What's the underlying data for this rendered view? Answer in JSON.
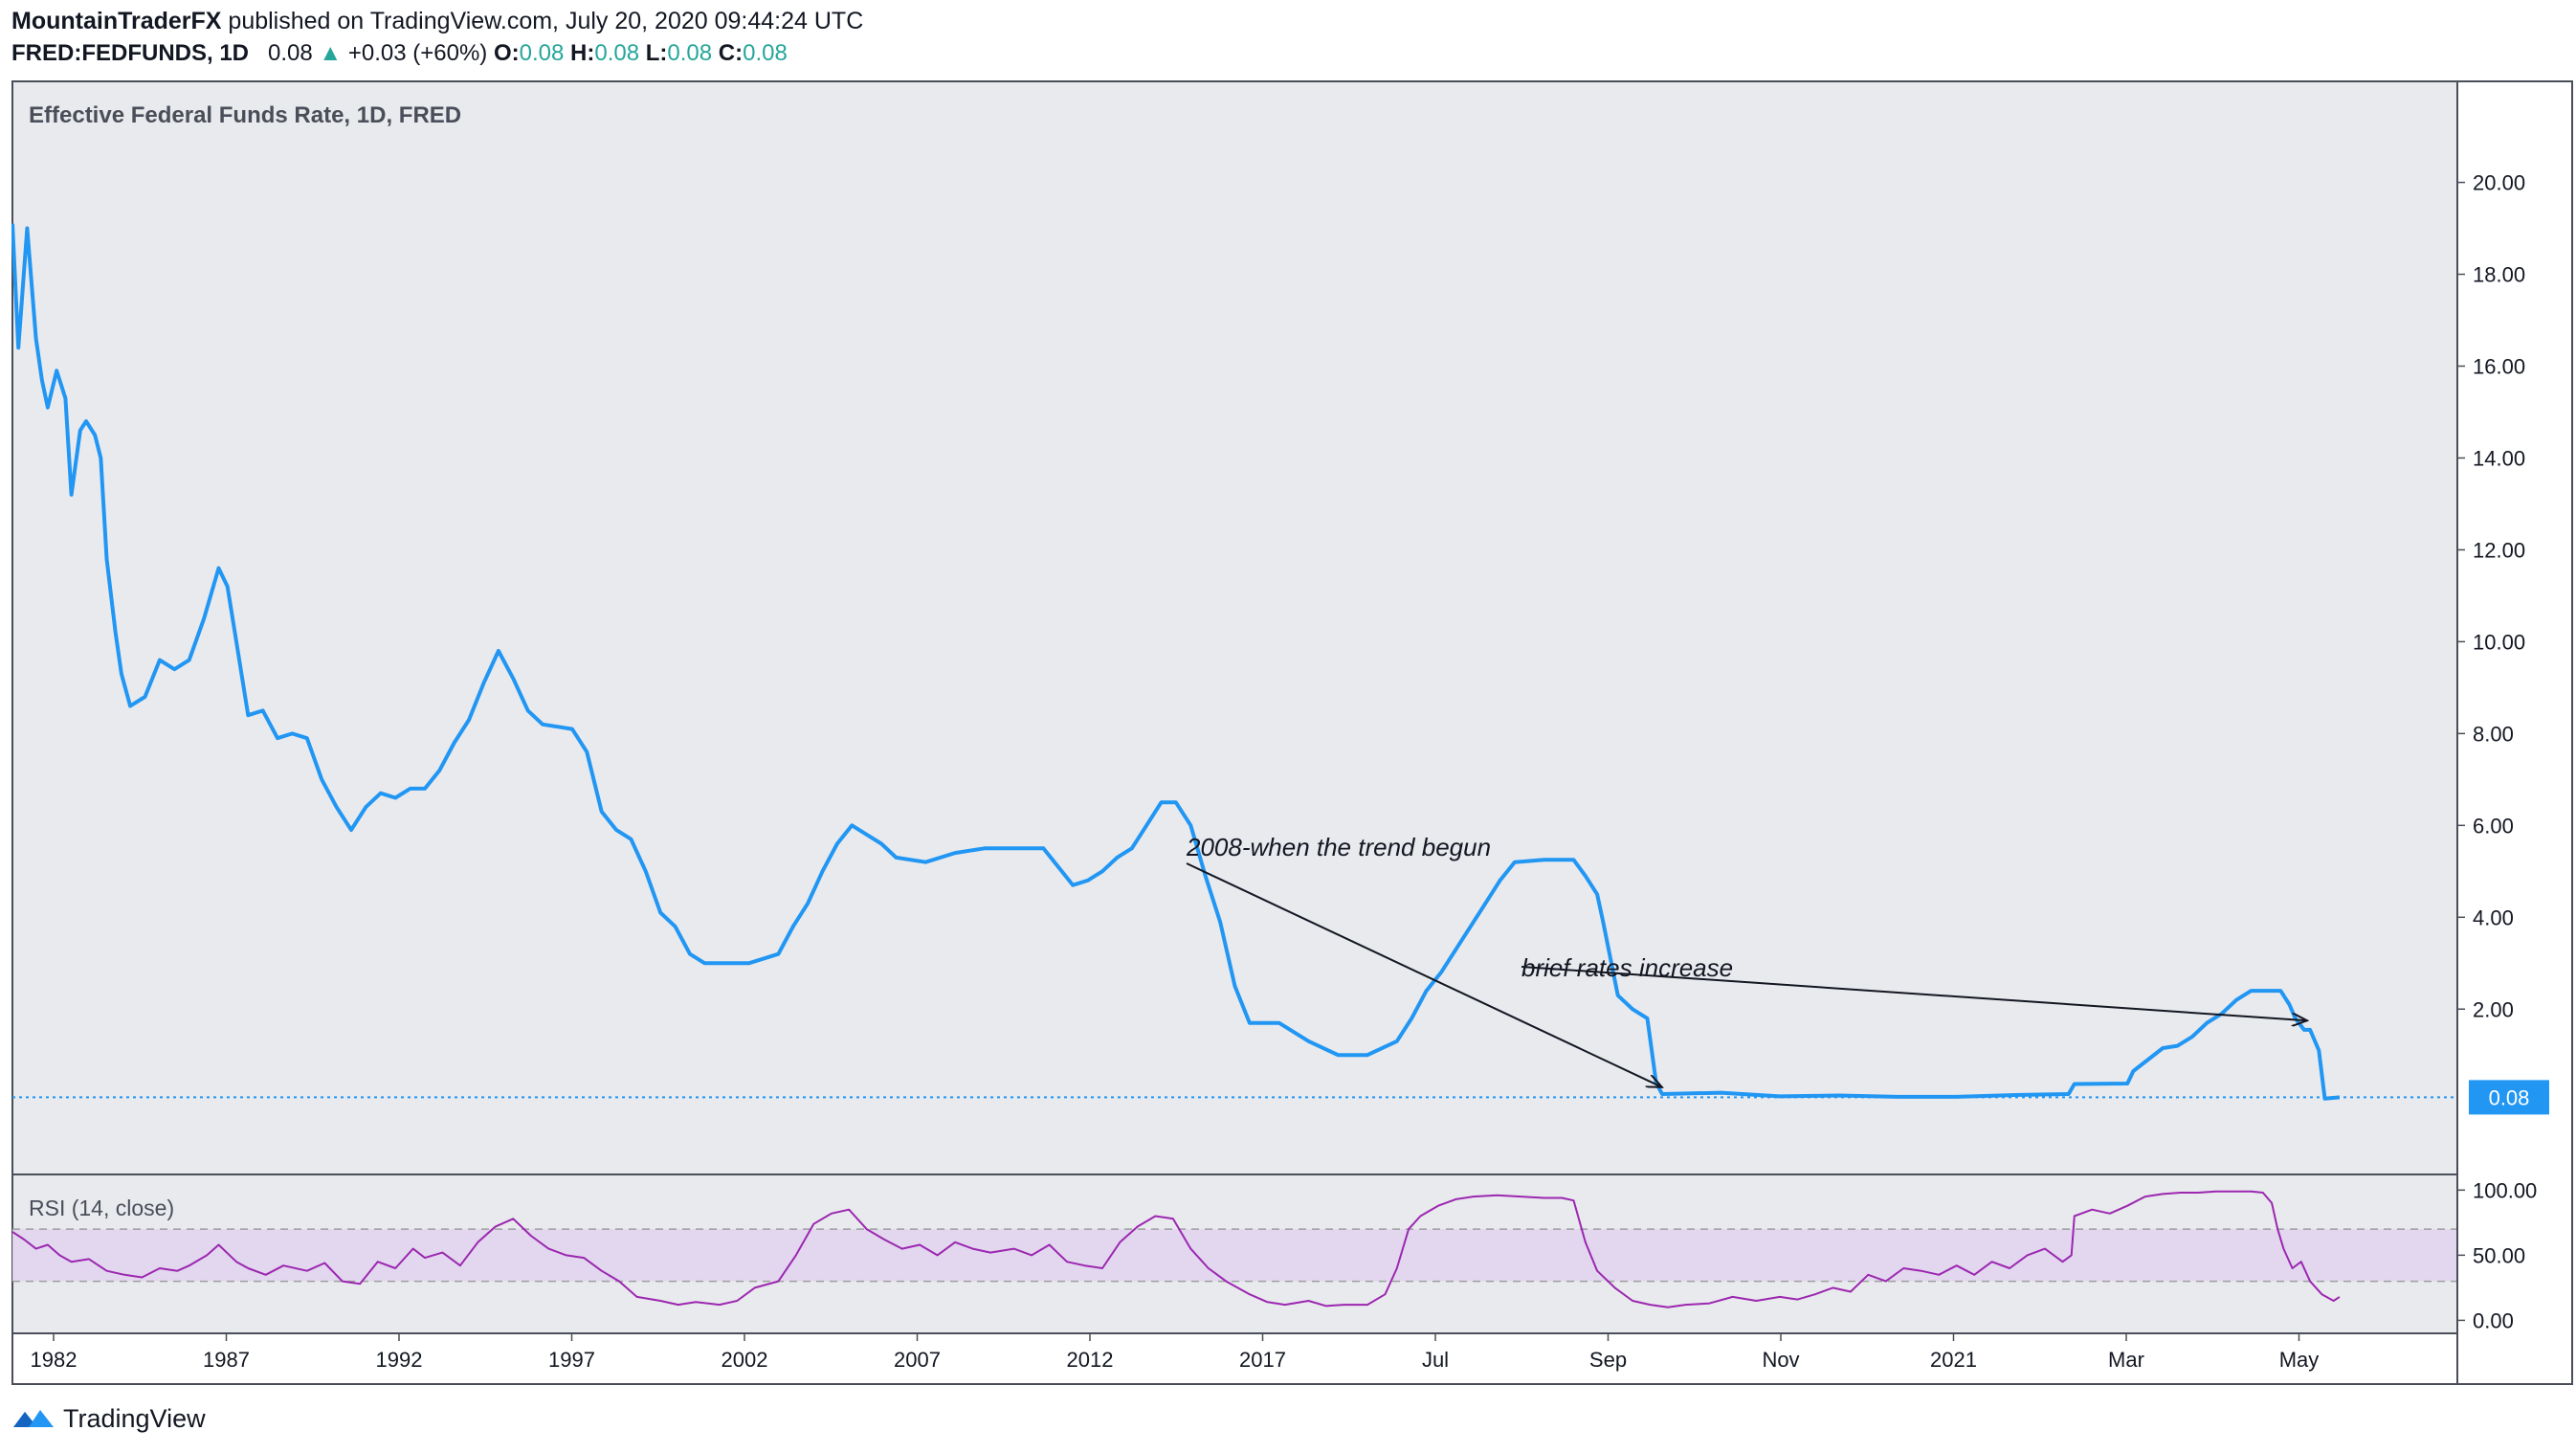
{
  "header": {
    "publisher": "MountainTraderFX",
    "published_text": " published on TradingView.com, July 20, 2020 09:44:24 UTC",
    "symbol": "FRED:FEDFUNDS, 1D",
    "last": "0.08",
    "change": "+0.03 (+60%)",
    "o_label": "O:",
    "o_value": "0.08",
    "h_label": "H:",
    "h_value": "0.08",
    "l_label": "L:",
    "l_value": "0.08",
    "c_label": "C:",
    "c_value": "0.08"
  },
  "footer": {
    "brand": "TradingView"
  },
  "colors": {
    "line": "#2196f3",
    "rsi": "#9c27b0",
    "rsi_band": "#e1d5ee",
    "pane_bg": "#e9eaee",
    "price_label_bg": "#2196f3"
  },
  "chart_data": [
    {
      "type": "line",
      "title": "Effective Federal Funds Rate, 1D, FRED",
      "xlim": [
        1981.0,
        2022.5
      ],
      "ylim": [
        -1.6,
        22.2
      ],
      "y_ticks": [
        2,
        4,
        6,
        8,
        10,
        12,
        14,
        16,
        18,
        20
      ],
      "y_tick_labels": [
        "2.00",
        "4.00",
        "6.00",
        "8.00",
        "10.00",
        "12.00",
        "14.00",
        "16.00",
        "18.00",
        "20.00"
      ],
      "last_value_label": "0.08",
      "last_value": 0.08,
      "series": [
        {
          "x": [
            1981.0,
            1981.1,
            1981.25,
            1981.4,
            1981.5,
            1981.6,
            1981.75,
            1981.9,
            1982.0,
            1982.15,
            1982.25,
            1982.4,
            1982.5,
            1982.6,
            1982.75,
            1982.85,
            1983.0,
            1983.25,
            1983.5,
            1983.75,
            1984.0,
            1984.25,
            1984.5,
            1984.65,
            1984.8,
            1985.0,
            1985.25,
            1985.5,
            1985.75,
            1986.0,
            1986.25,
            1986.5,
            1986.75,
            1987.0,
            1987.25,
            1987.5,
            1987.75,
            1988.0,
            1988.25,
            1988.5,
            1988.75,
            1989.0,
            1989.25,
            1989.5,
            1989.75,
            1990.0,
            1990.5,
            1990.75,
            1991.0,
            1991.25,
            1991.5,
            1991.75,
            1992.0,
            1992.25,
            1992.5,
            1992.75,
            1993.0,
            1993.5,
            1994.0,
            1994.25,
            1994.5,
            1994.75,
            1995.0,
            1995.25,
            1995.5,
            1995.75,
            1996.0,
            1996.5,
            1997.0,
            1997.5,
            1998.0,
            1998.5,
            1998.75,
            1999.0,
            1999.25,
            1999.5,
            1999.75,
            2000.0,
            2000.25,
            2000.5,
            2000.75,
            2001.0,
            2001.25,
            2001.5,
            2001.75,
            2002.0,
            2002.5,
            2003.0,
            2003.5,
            2004.0,
            2004.5,
            2004.75,
            2005.0,
            2005.25,
            2005.5,
            2005.75,
            2006.0,
            2006.25,
            2006.5,
            2007.0,
            2007.5,
            2007.7,
            2007.9,
            2008.0,
            2008.25,
            2008.5,
            2008.75,
            2008.9,
            2009.0,
            2010.0,
            2011.0,
            2012.0,
            2013.0,
            2014.0,
            2015.0,
            2015.9,
            2016.0,
            2016.9,
            2017.0,
            2017.25,
            2017.5,
            2017.75,
            2018.0,
            2018.25,
            2018.5,
            2018.75,
            2019.0,
            2019.25,
            2019.5,
            2019.65,
            2019.75,
            2019.9,
            2020.0,
            2020.15,
            2020.25,
            2020.5
          ],
          "y": [
            19.1,
            16.4,
            19.0,
            16.6,
            15.7,
            15.1,
            15.9,
            15.3,
            13.2,
            14.6,
            14.8,
            14.5,
            14.0,
            11.8,
            10.2,
            9.3,
            8.6,
            8.8,
            9.6,
            9.4,
            9.6,
            10.5,
            11.6,
            11.2,
            10.0,
            8.4,
            8.5,
            7.9,
            8.0,
            7.9,
            7.0,
            6.4,
            5.9,
            6.4,
            6.7,
            6.6,
            6.8,
            6.8,
            7.2,
            7.8,
            8.3,
            9.1,
            9.8,
            9.2,
            8.5,
            8.2,
            8.1,
            7.6,
            6.3,
            5.9,
            5.7,
            5.0,
            4.1,
            3.8,
            3.2,
            3.0,
            3.0,
            3.0,
            3.2,
            3.8,
            4.3,
            5.0,
            5.6,
            6.0,
            5.8,
            5.6,
            5.3,
            5.2,
            5.4,
            5.5,
            5.5,
            5.5,
            5.1,
            4.7,
            4.8,
            5.0,
            5.3,
            5.5,
            6.0,
            6.5,
            6.5,
            6.0,
            4.9,
            3.9,
            2.5,
            1.7,
            1.7,
            1.3,
            1.0,
            1.0,
            1.3,
            1.8,
            2.4,
            2.8,
            3.3,
            3.8,
            4.3,
            4.8,
            5.2,
            5.25,
            5.25,
            4.9,
            4.5,
            3.9,
            2.3,
            2.0,
            1.8,
            0.4,
            0.15,
            0.18,
            0.1,
            0.12,
            0.09,
            0.09,
            0.13,
            0.15,
            0.37,
            0.38,
            0.65,
            0.9,
            1.15,
            1.2,
            1.4,
            1.7,
            1.9,
            2.2,
            2.4,
            2.4,
            2.4,
            2.1,
            1.8,
            1.55,
            1.55,
            1.1,
            0.05,
            0.08
          ]
        }
      ],
      "annotations": [
        {
          "text": "2008-when the trend begun",
          "points_to": [
            2009.0,
            0.3
          ]
        },
        {
          "text": "brief rates increase",
          "points_to": [
            2019.95,
            1.75
          ]
        }
      ]
    },
    {
      "type": "line",
      "title": "RSI (14, close)",
      "xlim": [
        1981.0,
        2022.5
      ],
      "ylim": [
        -10,
        112
      ],
      "y_ticks": [
        0,
        50,
        100
      ],
      "y_tick_labels": [
        "0.00",
        "50.00",
        "100.00"
      ],
      "bands": [
        30,
        70
      ],
      "x_tick_labels": [
        "1982",
        "1987",
        "1992",
        "1997",
        "2002",
        "2007",
        "2012",
        "2017",
        "Jul",
        "Sep",
        "Nov",
        "2021",
        "Mar",
        "May"
      ],
      "x_tick_positions": [
        1981.6,
        1986.6,
        1991.6,
        1996.6,
        2001.6,
        2006.6,
        2011.6,
        2016.6,
        2017.3,
        2018.4,
        2019.5,
        2020.6,
        2021.6,
        2022.7
      ],
      "series": [
        {
          "x": [
            1981.0,
            1981.2,
            1981.4,
            1981.6,
            1981.8,
            1982.0,
            1982.3,
            1982.6,
            1982.9,
            1983.2,
            1983.5,
            1983.8,
            1984.0,
            1984.3,
            1984.5,
            1984.8,
            1985.0,
            1985.3,
            1985.6,
            1986.0,
            1986.3,
            1986.6,
            1986.9,
            1987.2,
            1987.5,
            1987.8,
            1988.0,
            1988.3,
            1988.6,
            1988.9,
            1989.2,
            1989.5,
            1989.8,
            1990.1,
            1990.4,
            1990.7,
            1991.0,
            1991.3,
            1991.6,
            1992.0,
            1992.3,
            1992.6,
            1993.0,
            1993.3,
            1993.6,
            1994.0,
            1994.3,
            1994.6,
            1994.9,
            1995.2,
            1995.5,
            1995.8,
            1996.1,
            1996.4,
            1996.7,
            1997.0,
            1997.3,
            1997.6,
            1998.0,
            1998.3,
            1998.6,
            1998.9,
            1999.2,
            1999.5,
            1999.8,
            2000.1,
            2000.4,
            2000.7,
            2001.0,
            2001.3,
            2001.6,
            2002.0,
            2002.3,
            2002.6,
            2003.0,
            2003.3,
            2003.6,
            2004.0,
            2004.3,
            2004.5,
            2004.7,
            2004.9,
            2005.2,
            2005.5,
            2005.8,
            2006.2,
            2006.6,
            2007.0,
            2007.3,
            2007.5,
            2007.7,
            2007.9,
            2008.2,
            2008.5,
            2008.8,
            2009.1,
            2009.4,
            2009.8,
            2010.2,
            2010.6,
            2011.0,
            2011.3,
            2011.6,
            2011.9,
            2012.2,
            2012.5,
            2012.8,
            2013.1,
            2013.4,
            2013.7,
            2014.0,
            2014.3,
            2014.6,
            2014.9,
            2015.2,
            2015.5,
            2015.8,
            2015.95,
            2016.0,
            2016.3,
            2016.6,
            2016.9,
            2017.2,
            2017.5,
            2017.8,
            2018.1,
            2018.4,
            2018.7,
            2019.0,
            2019.2,
            2019.35,
            2019.45,
            2019.55,
            2019.7,
            2019.85,
            2020.0,
            2020.2,
            2020.4,
            2020.5
          ],
          "y": [
            68,
            62,
            55,
            58,
            50,
            45,
            47,
            38,
            35,
            33,
            40,
            38,
            42,
            50,
            58,
            45,
            40,
            35,
            42,
            38,
            44,
            30,
            28,
            45,
            40,
            55,
            48,
            52,
            42,
            60,
            72,
            78,
            65,
            55,
            50,
            48,
            38,
            30,
            18,
            15,
            12,
            14,
            12,
            15,
            25,
            30,
            50,
            74,
            82,
            85,
            70,
            62,
            55,
            58,
            50,
            60,
            55,
            52,
            55,
            50,
            58,
            45,
            42,
            40,
            60,
            72,
            80,
            78,
            55,
            40,
            30,
            20,
            14,
            12,
            15,
            11,
            12,
            12,
            20,
            40,
            70,
            80,
            88,
            93,
            95,
            96,
            95,
            94,
            94,
            92,
            60,
            38,
            25,
            15,
            12,
            10,
            12,
            13,
            18,
            15,
            18,
            16,
            20,
            25,
            22,
            35,
            30,
            40,
            38,
            35,
            42,
            35,
            45,
            40,
            50,
            55,
            45,
            50,
            80,
            85,
            82,
            88,
            95,
            97,
            98,
            98,
            99,
            99,
            99,
            98,
            90,
            70,
            55,
            40,
            45,
            30,
            20,
            15,
            18
          ]
        }
      ]
    }
  ]
}
